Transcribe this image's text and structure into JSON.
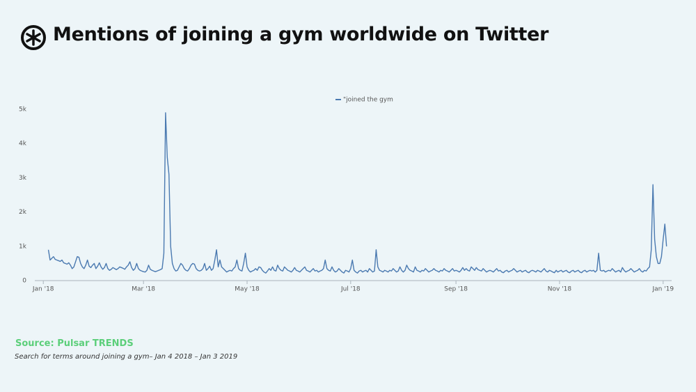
{
  "chart_data": {
    "type": "line",
    "title": "Mentions of joining a gym worldwide on Twitter",
    "source": "Source: Pulsar TRENDS",
    "subtitle": "Search for terms around joining a gym– Jan 4 2018 – Jan 3 2019",
    "xlim": [
      -5,
      370
    ],
    "xticks": [
      {
        "value": 0,
        "label": "Jan '18"
      },
      {
        "value": 59,
        "label": "Mar '18"
      },
      {
        "value": 120,
        "label": "May '18"
      },
      {
        "value": 181,
        "label": "Jul '18"
      },
      {
        "value": 243,
        "label": "Sep '18"
      },
      {
        "value": 304,
        "label": "Nov '18"
      },
      {
        "value": 365,
        "label": "Jan '19"
      }
    ],
    "ylim": [
      0,
      5000
    ],
    "yticks": [
      0,
      {
        "value": 1000,
        "label": "1k"
      },
      {
        "value": 2000,
        "label": "2k"
      },
      {
        "value": 3000,
        "label": "3k"
      },
      {
        "value": 4000,
        "label": "4k"
      },
      {
        "value": 5000,
        "label": "5k"
      }
    ],
    "x": [
      3,
      4,
      5,
      6,
      7,
      8,
      9,
      10,
      11,
      12,
      13,
      14,
      15,
      16,
      17,
      18,
      19,
      20,
      21,
      22,
      23,
      24,
      25,
      26,
      27,
      28,
      29,
      30,
      31,
      32,
      33,
      34,
      35,
      36,
      37,
      38,
      39,
      40,
      41,
      42,
      43,
      44,
      45,
      46,
      47,
      48,
      49,
      50,
      51,
      52,
      53,
      54,
      55,
      56,
      57,
      58,
      59,
      60,
      61,
      62,
      63,
      64,
      65,
      66,
      67,
      68,
      69,
      70,
      71,
      72,
      73,
      74,
      75,
      76,
      77,
      78,
      79,
      80,
      81,
      82,
      83,
      84,
      85,
      86,
      87,
      88,
      89,
      90,
      91,
      92,
      93,
      94,
      95,
      96,
      97,
      98,
      99,
      100,
      101,
      102,
      103,
      104,
      105,
      106,
      107,
      108,
      109,
      110,
      111,
      112,
      113,
      114,
      115,
      116,
      117,
      118,
      119,
      120,
      121,
      122,
      123,
      124,
      125,
      126,
      127,
      128,
      129,
      130,
      131,
      132,
      133,
      134,
      135,
      136,
      137,
      138,
      139,
      140,
      141,
      142,
      143,
      144,
      145,
      146,
      147,
      148,
      149,
      150,
      151,
      152,
      153,
      154,
      155,
      156,
      157,
      158,
      159,
      160,
      161,
      162,
      163,
      164,
      165,
      166,
      167,
      168,
      169,
      170,
      171,
      172,
      173,
      174,
      175,
      176,
      177,
      178,
      179,
      180,
      181,
      182,
      183,
      184,
      185,
      186,
      187,
      188,
      189,
      190,
      191,
      192,
      193,
      194,
      195,
      196,
      197,
      198,
      199,
      200,
      201,
      202,
      203,
      204,
      205,
      206,
      207,
      208,
      209,
      210,
      211,
      212,
      213,
      214,
      215,
      216,
      217,
      218,
      219,
      220,
      221,
      222,
      223,
      224,
      225,
      226,
      227,
      228,
      229,
      230,
      231,
      232,
      233,
      234,
      235,
      236,
      237,
      238,
      239,
      240,
      241,
      242,
      243,
      244,
      245,
      246,
      247,
      248,
      249,
      250,
      251,
      252,
      253,
      254,
      255,
      256,
      257,
      258,
      259,
      260,
      261,
      262,
      263,
      264,
      265,
      266,
      267,
      268,
      269,
      270,
      271,
      272,
      273,
      274,
      275,
      276,
      277,
      278,
      279,
      280,
      281,
      282,
      283,
      284,
      285,
      286,
      287,
      288,
      289,
      290,
      291,
      292,
      293,
      294,
      295,
      296,
      297,
      298,
      299,
      300,
      301,
      302,
      303,
      304,
      305,
      306,
      307,
      308,
      309,
      310,
      311,
      312,
      313,
      314,
      315,
      316,
      317,
      318,
      319,
      320,
      321,
      322,
      323,
      324,
      325,
      326,
      327,
      328,
      329,
      330,
      331,
      332,
      333,
      334,
      335,
      336,
      337,
      338,
      339,
      340,
      341,
      342,
      343,
      344,
      345,
      346,
      347,
      348,
      349,
      350,
      351,
      352,
      353,
      354,
      355,
      356,
      357,
      358,
      359,
      360,
      361,
      362,
      363,
      364,
      365,
      366,
      367
    ],
    "series": [
      {
        "name": "\"joined the gym",
        "color": "#4a79b0",
        "values": [
          900,
          600,
          650,
          700,
          620,
          600,
          580,
          560,
          600,
          520,
          500,
          480,
          520,
          450,
          350,
          400,
          550,
          700,
          680,
          500,
          400,
          350,
          450,
          600,
          420,
          380,
          450,
          500,
          350,
          420,
          520,
          400,
          330,
          380,
          500,
          350,
          300,
          330,
          380,
          350,
          320,
          350,
          400,
          380,
          360,
          330,
          400,
          450,
          550,
          380,
          300,
          350,
          500,
          350,
          300,
          280,
          260,
          250,
          300,
          450,
          330,
          300,
          280,
          260,
          280,
          300,
          320,
          350,
          800,
          4900,
          3600,
          3100,
          1000,
          500,
          350,
          280,
          300,
          400,
          500,
          450,
          350,
          300,
          280,
          350,
          450,
          500,
          480,
          350,
          300,
          280,
          300,
          350,
          500,
          300,
          350,
          420,
          300,
          350,
          600,
          900,
          400,
          600,
          400,
          350,
          300,
          250,
          280,
          300,
          280,
          350,
          400,
          600,
          350,
          300,
          280,
          500,
          800,
          400,
          300,
          250,
          280,
          300,
          350,
          300,
          400,
          380,
          300,
          250,
          220,
          280,
          350,
          300,
          400,
          300,
          280,
          450,
          350,
          300,
          280,
          400,
          350,
          300,
          280,
          250,
          300,
          380,
          300,
          280,
          250,
          300,
          350,
          400,
          300,
          280,
          250,
          300,
          350,
          280,
          300,
          250,
          280,
          300,
          350,
          600,
          350,
          300,
          280,
          400,
          300,
          250,
          280,
          350,
          300,
          250,
          220,
          300,
          280,
          250,
          350,
          600,
          300,
          250,
          220,
          280,
          300,
          250,
          280,
          300,
          250,
          350,
          300,
          250,
          280,
          900,
          400,
          300,
          280,
          250,
          300,
          280,
          250,
          300,
          280,
          350,
          300,
          250,
          280,
          400,
          300,
          250,
          300,
          450,
          350,
          300,
          280,
          250,
          400,
          300,
          280,
          250,
          300,
          280,
          350,
          300,
          250,
          280,
          300,
          350,
          300,
          280,
          250,
          300,
          280,
          350,
          300,
          280,
          250,
          300,
          350,
          280,
          300,
          280,
          250,
          300,
          380,
          300,
          350,
          300,
          280,
          400,
          350,
          300,
          380,
          320,
          300,
          280,
          350,
          300,
          250,
          280,
          300,
          280,
          250,
          300,
          350,
          280,
          300,
          250,
          230,
          280,
          300,
          250,
          280,
          300,
          350,
          300,
          250,
          280,
          300,
          250,
          280,
          300,
          250,
          230,
          280,
          300,
          280,
          250,
          300,
          280,
          250,
          300,
          350,
          280,
          250,
          300,
          280,
          250,
          230,
          300,
          250,
          280,
          300,
          250,
          280,
          300,
          250,
          230,
          280,
          300,
          250,
          280,
          300,
          250,
          230,
          280,
          300,
          250,
          280,
          300,
          280,
          300,
          250,
          300,
          800,
          300,
          280,
          300,
          250,
          280,
          300,
          280,
          350,
          300,
          250,
          280,
          300,
          250,
          380,
          300,
          250,
          280,
          300,
          350,
          300,
          250,
          280,
          300,
          350,
          280,
          250,
          300,
          280,
          350,
          400,
          900,
          2800,
          1200,
          700,
          500,
          500,
          700,
          1200,
          1650,
          1000
        ]
      }
    ],
    "legend": "top"
  }
}
